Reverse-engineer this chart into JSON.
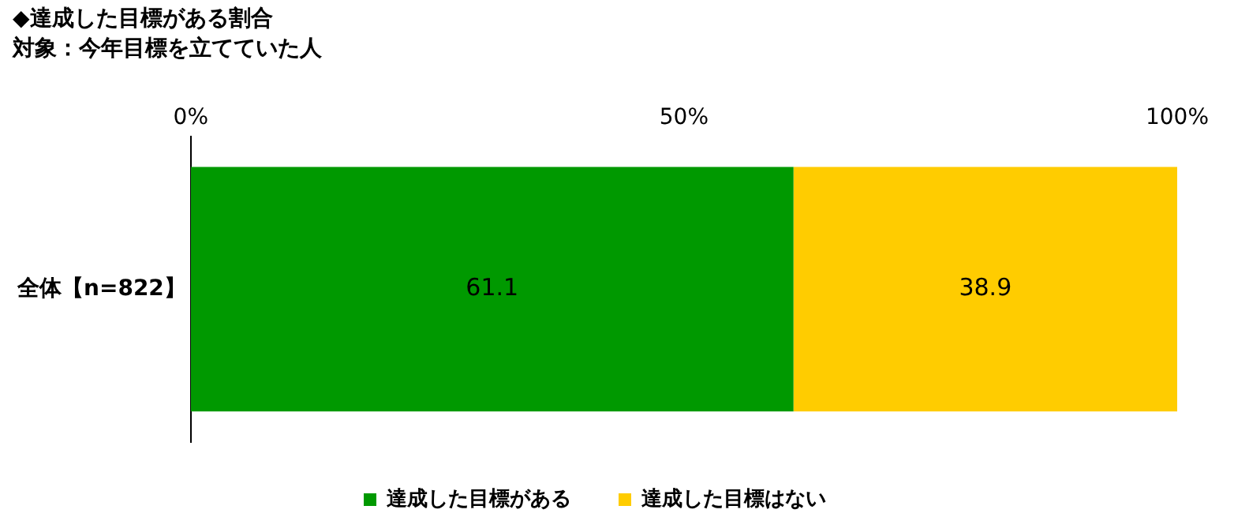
{
  "chart_data": {
    "type": "bar",
    "orientation": "horizontal",
    "stacked": true,
    "title": "◆達成した目標がある割合",
    "subtitle": "対象：今年目標を立てていた人",
    "categories": [
      "全体【n=822】"
    ],
    "series": [
      {
        "name": "達成した目標がある",
        "color": "#009900",
        "values": [
          61.1
        ]
      },
      {
        "name": "達成した目標はない",
        "color": "#ffcc00",
        "values": [
          38.9
        ]
      }
    ],
    "xlim": [
      0,
      100
    ],
    "xticks": [
      {
        "value": 0,
        "label": "0%"
      },
      {
        "value": 50,
        "label": "50%"
      },
      {
        "value": 100,
        "label": "100%"
      }
    ],
    "data_labels": true,
    "legend": "bottom",
    "grid": false
  }
}
